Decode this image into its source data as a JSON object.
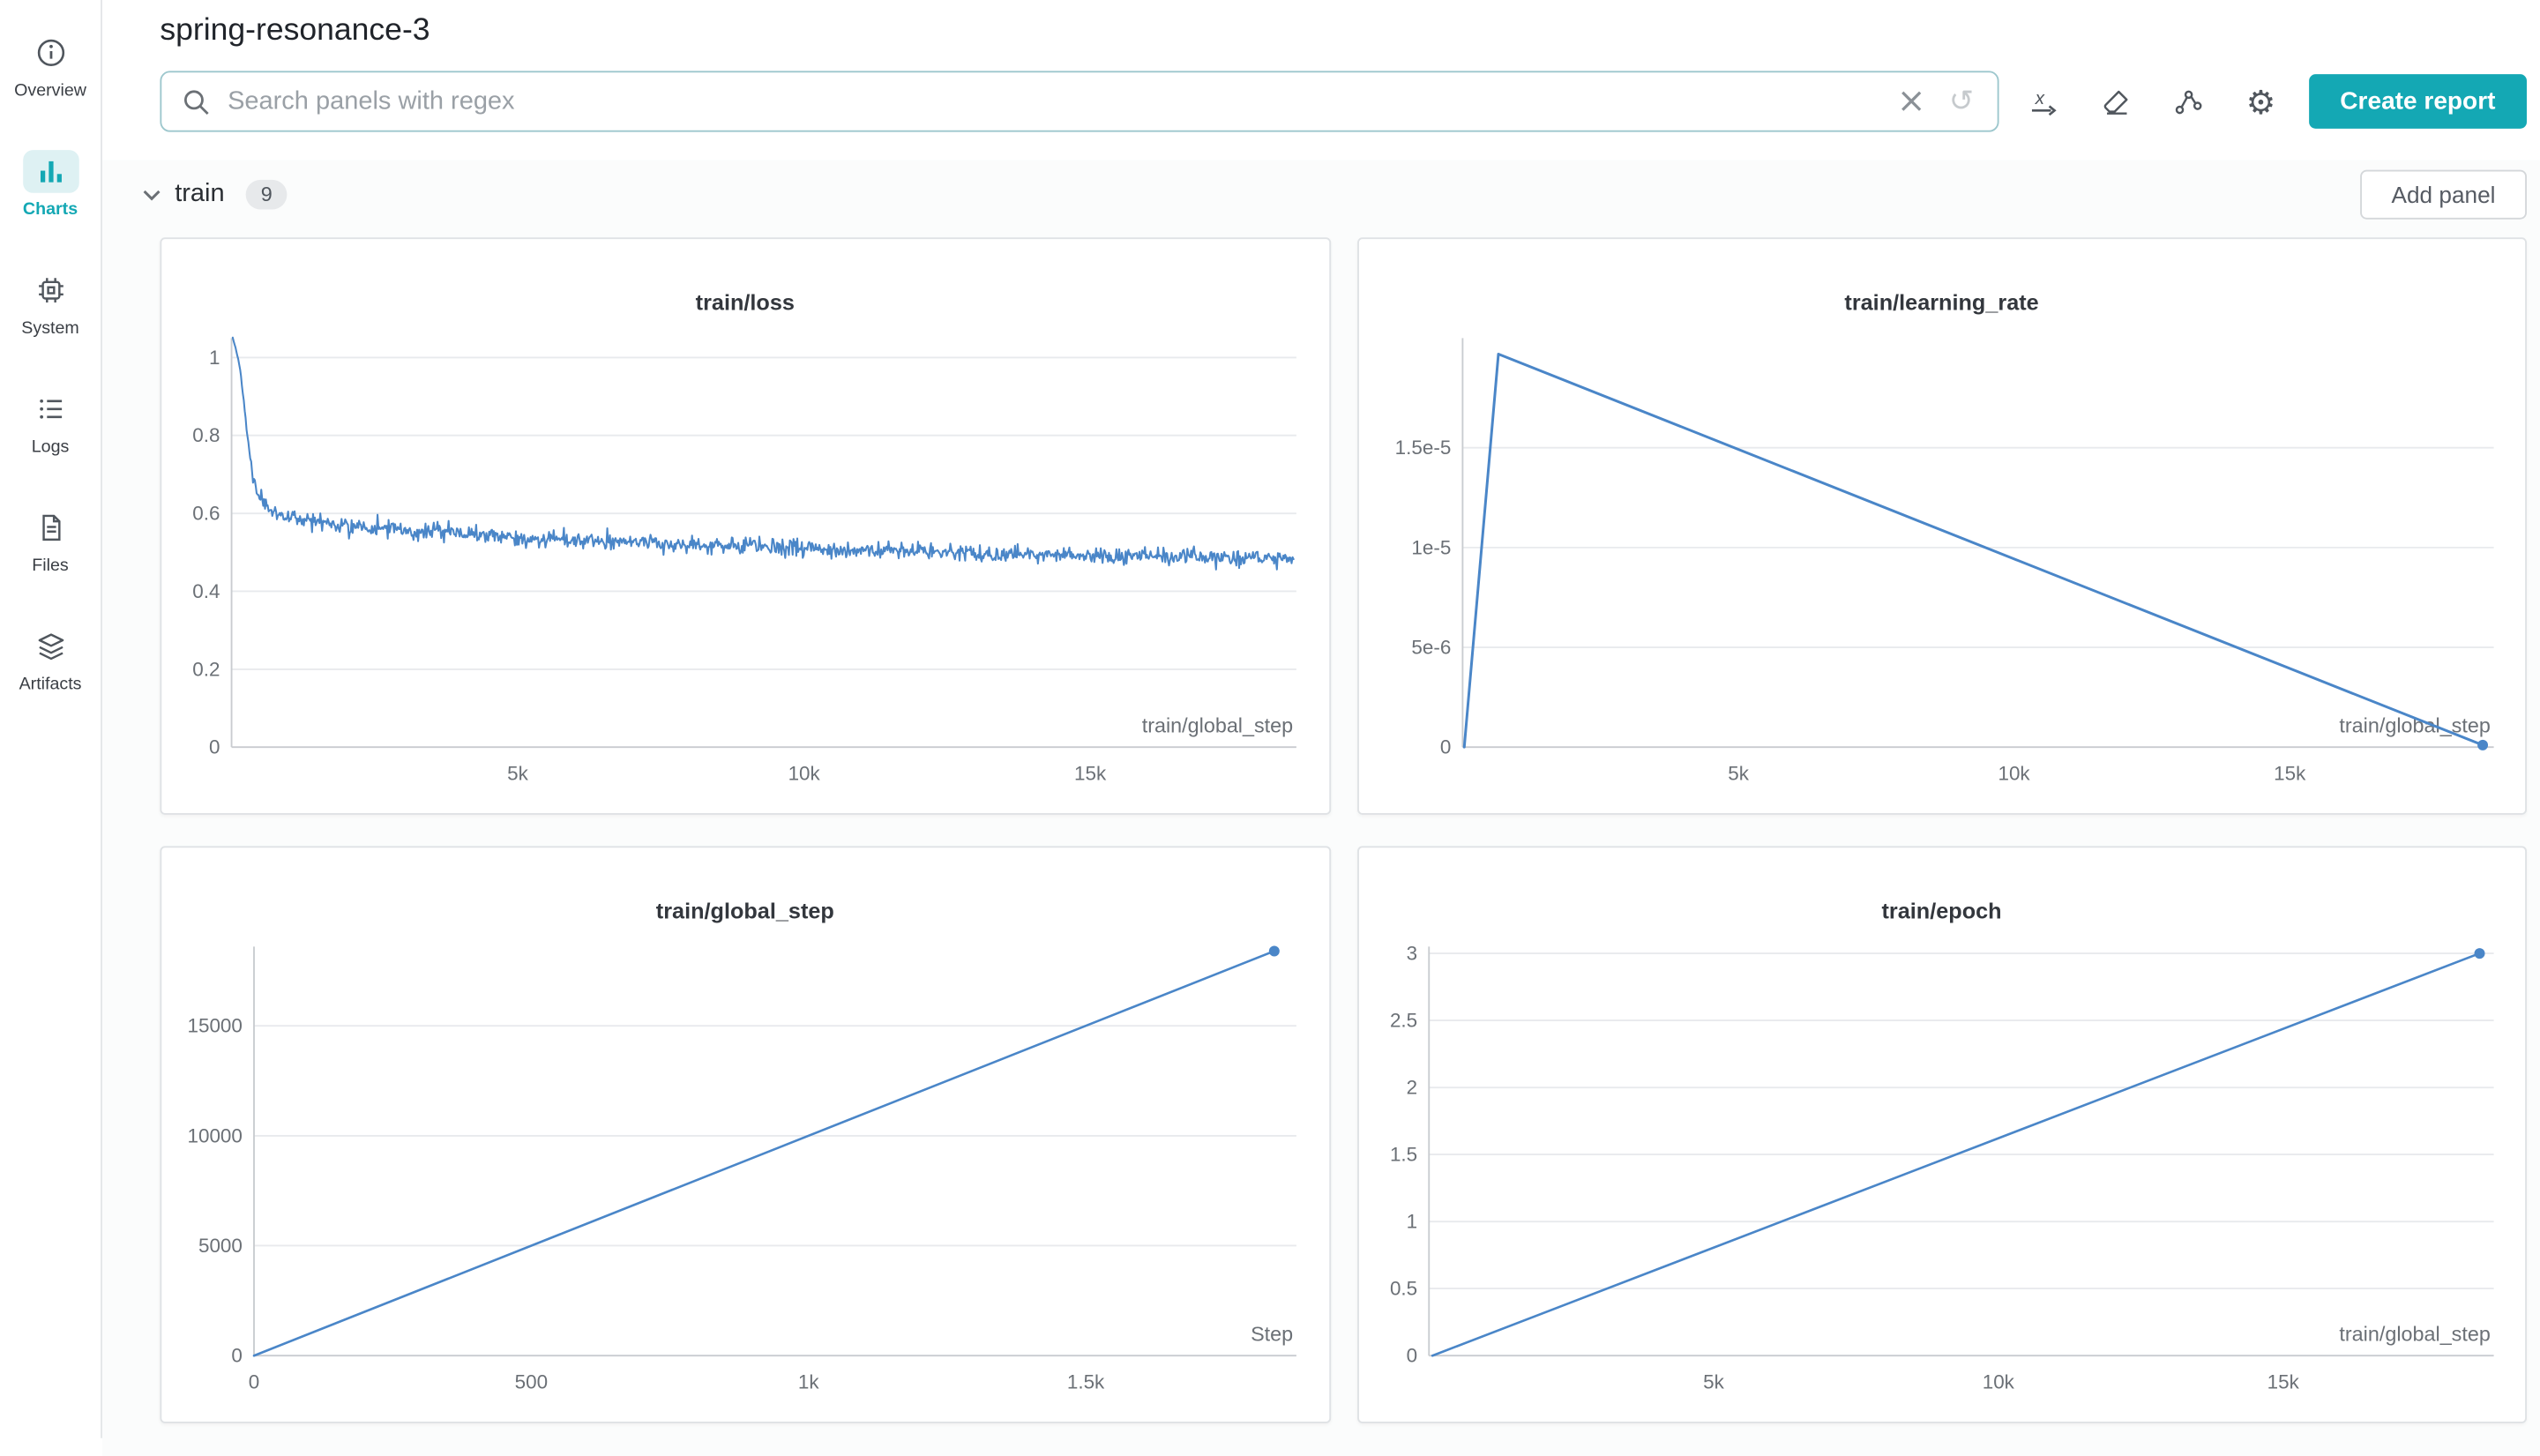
{
  "app": {
    "title": "spring-resonance-3"
  },
  "sidebar": {
    "items": [
      {
        "label": "Overview",
        "icon": "info-icon",
        "active": false
      },
      {
        "label": "Charts",
        "icon": "bar-chart-icon",
        "active": true
      },
      {
        "label": "System",
        "icon": "cpu-icon",
        "active": false
      },
      {
        "label": "Logs",
        "icon": "logs-icon",
        "active": false
      },
      {
        "label": "Files",
        "icon": "files-icon",
        "active": false
      },
      {
        "label": "Artifacts",
        "icon": "artifacts-icon",
        "active": false
      }
    ]
  },
  "toolbar": {
    "search_placeholder": "Search panels with regex",
    "clear_glyph": "×",
    "history_glyph": "↺",
    "gear_glyph": "⚙",
    "create_report_label": "Create report"
  },
  "section": {
    "name": "train",
    "count": "9",
    "add_panel_label": "Add panel"
  },
  "colors": {
    "accent": "#14a8b4",
    "accent_bg": "#def1f3",
    "chart_line": "#4a86c8",
    "grid": "#e8eaed",
    "axis": "#c9ccd0",
    "text_muted": "#6b7076"
  },
  "chart_data": [
    {
      "type": "line",
      "title": "train/loss",
      "x_label": "train/global_step",
      "x_range": [
        0,
        18600
      ],
      "y_range": [
        0,
        1.05
      ],
      "x_ticks": [
        {
          "v": 5000,
          "label": "5k"
        },
        {
          "v": 10000,
          "label": "10k"
        },
        {
          "v": 15000,
          "label": "15k"
        }
      ],
      "y_ticks": [
        {
          "v": 0,
          "label": "0"
        },
        {
          "v": 0.2,
          "label": "0.2"
        },
        {
          "v": 0.4,
          "label": "0.4"
        },
        {
          "v": 0.6,
          "label": "0.6"
        },
        {
          "v": 0.8,
          "label": "0.8"
        },
        {
          "v": 1,
          "label": "1"
        }
      ],
      "series": [
        {
          "name": "train/loss",
          "anchors": [
            [
              20,
              1.05
            ],
            [
              80,
              1.02
            ],
            [
              150,
              0.97
            ],
            [
              220,
              0.88
            ],
            [
              300,
              0.77
            ],
            [
              380,
              0.69
            ],
            [
              460,
              0.645
            ],
            [
              560,
              0.62
            ],
            [
              700,
              0.605
            ],
            [
              900,
              0.595
            ],
            [
              1200,
              0.585
            ],
            [
              1700,
              0.575
            ],
            [
              2400,
              0.565
            ],
            [
              3200,
              0.555
            ],
            [
              4200,
              0.545
            ],
            [
              5400,
              0.535
            ],
            [
              6800,
              0.527
            ],
            [
              8200,
              0.52
            ],
            [
              9600,
              0.513
            ],
            [
              11000,
              0.506
            ],
            [
              12400,
              0.5
            ],
            [
              13800,
              0.496
            ],
            [
              15200,
              0.492
            ],
            [
              16600,
              0.488
            ],
            [
              18000,
              0.484
            ],
            [
              18550,
              0.482
            ]
          ],
          "noise": 0.013,
          "samples": 1150,
          "seed": 7
        }
      ],
      "stroke_width": 1.1,
      "end_dot": false,
      "legend": "off",
      "grid": "horizontal"
    },
    {
      "type": "line",
      "title": "train/learning_rate",
      "x_label": "train/global_step",
      "x_range": [
        0,
        18700
      ],
      "y_range": [
        0,
        2.05e-05
      ],
      "x_ticks": [
        {
          "v": 5000,
          "label": "5k"
        },
        {
          "v": 10000,
          "label": "10k"
        },
        {
          "v": 15000,
          "label": "15k"
        }
      ],
      "y_ticks": [
        {
          "v": 0,
          "label": "0"
        },
        {
          "v": 5e-06,
          "label": "5e-6"
        },
        {
          "v": 1e-05,
          "label": "1e-5"
        },
        {
          "v": 1.5e-05,
          "label": "1.5e-5"
        }
      ],
      "series": [
        {
          "name": "train/learning_rate",
          "anchors": [
            [
              30,
              0
            ],
            [
              650,
              1.97e-05
            ],
            [
              18500,
              1e-07
            ]
          ],
          "noise": 0,
          "seed": 1
        }
      ],
      "stroke_width": 1.6,
      "end_dot": true,
      "legend": "off",
      "grid": "horizontal"
    },
    {
      "type": "line",
      "title": "train/global_step",
      "x_label": "Step",
      "x_range": [
        0,
        1880
      ],
      "y_range": [
        0,
        18600
      ],
      "x_ticks": [
        {
          "v": 0,
          "label": "0"
        },
        {
          "v": 500,
          "label": "500"
        },
        {
          "v": 1000,
          "label": "1k"
        },
        {
          "v": 1500,
          "label": "1.5k"
        }
      ],
      "y_ticks": [
        {
          "v": 0,
          "label": "0"
        },
        {
          "v": 5000,
          "label": "5000"
        },
        {
          "v": 10000,
          "label": "10000"
        },
        {
          "v": 15000,
          "label": "15000"
        }
      ],
      "series": [
        {
          "name": "train/global_step",
          "anchors": [
            [
              0,
              0
            ],
            [
              1840,
              18400
            ]
          ],
          "noise": 0,
          "seed": 1
        }
      ],
      "stroke_width": 1.4,
      "end_dot": true,
      "legend": "off",
      "grid": "horizontal"
    },
    {
      "type": "line",
      "title": "train/epoch",
      "x_label": "train/global_step",
      "x_range": [
        0,
        18700
      ],
      "y_range": [
        0,
        3.05
      ],
      "x_ticks": [
        {
          "v": 5000,
          "label": "5k"
        },
        {
          "v": 10000,
          "label": "10k"
        },
        {
          "v": 15000,
          "label": "15k"
        }
      ],
      "y_ticks": [
        {
          "v": 0,
          "label": "0"
        },
        {
          "v": 0.5,
          "label": "0.5"
        },
        {
          "v": 1,
          "label": "1"
        },
        {
          "v": 1.5,
          "label": "1.5"
        },
        {
          "v": 2,
          "label": "2"
        },
        {
          "v": 2.5,
          "label": "2.5"
        },
        {
          "v": 3,
          "label": "3"
        }
      ],
      "series": [
        {
          "name": "train/epoch",
          "anchors": [
            [
              60,
              0
            ],
            [
              18450,
              3
            ]
          ],
          "noise": 0,
          "seed": 1
        }
      ],
      "stroke_width": 1.4,
      "end_dot": true,
      "legend": "off",
      "grid": "horizontal"
    }
  ]
}
